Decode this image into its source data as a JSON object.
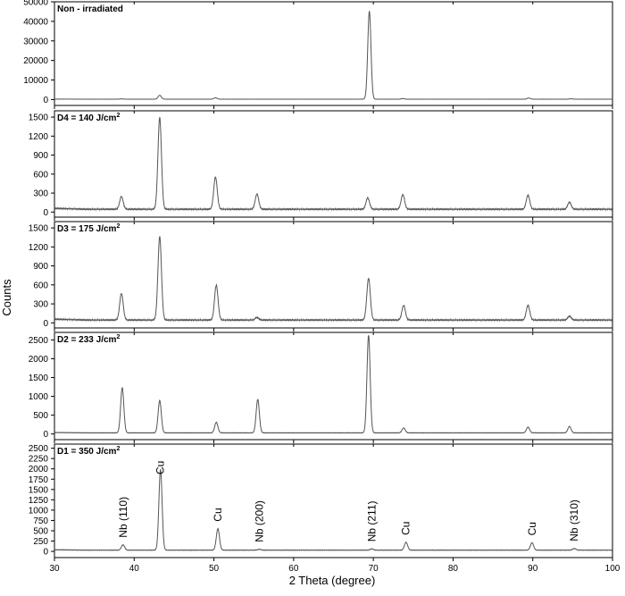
{
  "chart_data": {
    "type": "line",
    "xlabel": "2 Theta (degree)",
    "ylabel": "Counts",
    "xlim": [
      30,
      100
    ],
    "x_ticks": [
      30,
      40,
      50,
      60,
      70,
      80,
      90,
      100
    ],
    "panels": [
      {
        "title_main": "Non - irradiated",
        "title_sup": "",
        "ylim": [
          -3000,
          50000
        ],
        "y_ticks": [
          0,
          10000,
          20000,
          30000,
          40000,
          50000
        ],
        "baseline": 200,
        "peak_width": 0.2,
        "peaks": [
          [
            38.4,
            150
          ],
          [
            43.2,
            2000
          ],
          [
            50.2,
            700
          ],
          [
            69.5,
            45000
          ],
          [
            73.7,
            300
          ],
          [
            89.5,
            600
          ],
          [
            94.8,
            200
          ]
        ],
        "annotations": []
      },
      {
        "title_main": "D4 = 140 J/cm",
        "title_sup": "2",
        "ylim": [
          -80,
          1600
        ],
        "y_ticks": [
          0,
          300,
          600,
          900,
          1200,
          1500
        ],
        "baseline": 45,
        "peak_width": 0.22,
        "peaks": [
          [
            38.4,
            200
          ],
          [
            43.2,
            1450
          ],
          [
            50.2,
            510
          ],
          [
            55.4,
            240
          ],
          [
            69.3,
            180
          ],
          [
            73.7,
            230
          ],
          [
            89.4,
            220
          ],
          [
            94.6,
            110
          ]
        ],
        "annotations": []
      },
      {
        "title_main": "D3 = 175 J/cm",
        "title_sup": "2",
        "ylim": [
          -80,
          1600
        ],
        "y_ticks": [
          0,
          300,
          600,
          900,
          1200,
          1500
        ],
        "baseline": 45,
        "peak_width": 0.22,
        "peaks": [
          [
            38.4,
            420
          ],
          [
            43.2,
            1320
          ],
          [
            50.3,
            550
          ],
          [
            55.4,
            40
          ],
          [
            69.4,
            660
          ],
          [
            73.8,
            230
          ],
          [
            89.4,
            230
          ],
          [
            94.6,
            60
          ]
        ],
        "annotations": []
      },
      {
        "title_main": "D2 = 233 J/cm",
        "title_sup": "2",
        "ylim": [
          -150,
          2700
        ],
        "y_ticks": [
          0,
          500,
          1000,
          1500,
          2000,
          2500
        ],
        "baseline": 30,
        "peak_width": 0.2,
        "peaks": [
          [
            38.5,
            1200
          ],
          [
            43.2,
            860
          ],
          [
            50.3,
            280
          ],
          [
            55.5,
            890
          ],
          [
            69.4,
            2600
          ],
          [
            73.8,
            130
          ],
          [
            89.4,
            150
          ],
          [
            94.6,
            170
          ]
        ],
        "annotations": []
      },
      {
        "title_main": "D1 = 350 J/cm",
        "title_sup": "2",
        "ylim": [
          -150,
          2600
        ],
        "y_ticks": [
          0,
          250,
          500,
          750,
          1000,
          1250,
          1500,
          1750,
          2000,
          2250,
          2500
        ],
        "baseline": 30,
        "peak_width": 0.2,
        "peaks": [
          [
            38.6,
            130
          ],
          [
            43.3,
            1960
          ],
          [
            50.5,
            520
          ],
          [
            55.7,
            20
          ],
          [
            69.8,
            30
          ],
          [
            74.1,
            190
          ],
          [
            89.9,
            180
          ],
          [
            95.2,
            40
          ]
        ],
        "annotations": [
          {
            "label": "Nb (110)",
            "x": 38.6
          },
          {
            "label": "Cu",
            "x": 43.3
          },
          {
            "label": "Cu",
            "x": 50.5
          },
          {
            "label": "Nb (200)",
            "x": 55.7
          },
          {
            "label": "Nb (211)",
            "x": 69.8
          },
          {
            "label": "Cu",
            "x": 74.1
          },
          {
            "label": "Cu",
            "x": 89.9
          },
          {
            "label": "Nb (310)",
            "x": 95.2
          }
        ]
      }
    ]
  }
}
